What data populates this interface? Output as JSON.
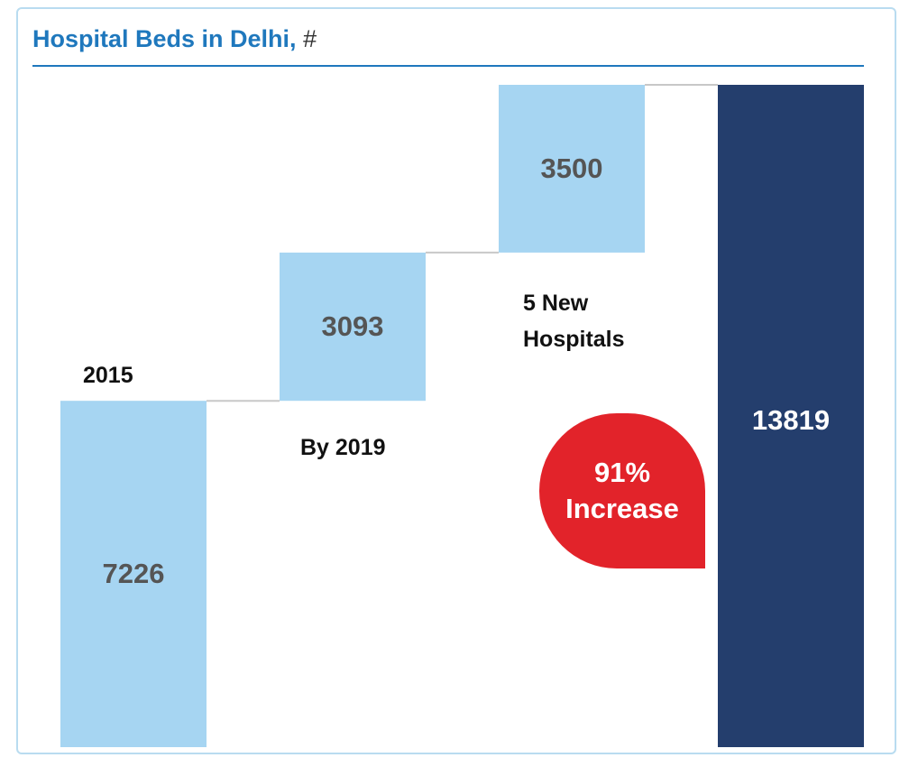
{
  "chart_data": {
    "type": "waterfall",
    "title": "Hospital Beds in Delhi,",
    "unit": "#",
    "categories": [
      "2015",
      "By 2019",
      "5 New Hospitals",
      null
    ],
    "values": [
      7226,
      3093,
      3500,
      13819
    ],
    "measure": [
      "absolute",
      "relative",
      "relative",
      "total"
    ],
    "colors": [
      "#a6d5f2",
      "#a6d5f2",
      "#a6d5f2",
      "#243e6d"
    ],
    "annotation": "91% Increase"
  }
}
